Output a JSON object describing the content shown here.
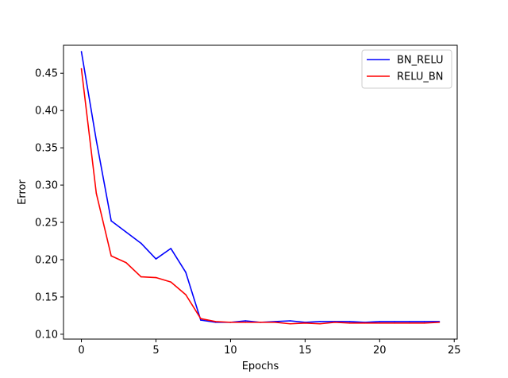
{
  "chart_data": {
    "type": "line",
    "title": "",
    "xlabel": "Epochs",
    "ylabel": "Error",
    "xlim": [
      -1.2,
      25.2
    ],
    "ylim": [
      0.0935,
      0.4875
    ],
    "xticks": [
      0,
      5,
      10,
      15,
      20,
      25
    ],
    "yticks": [
      0.1,
      0.15,
      0.2,
      0.25,
      0.3,
      0.35,
      0.4,
      0.45
    ],
    "grid": false,
    "legend_position": "top-right",
    "x": [
      0,
      1,
      2,
      3,
      4,
      5,
      6,
      7,
      8,
      9,
      10,
      11,
      12,
      13,
      14,
      15,
      16,
      17,
      18,
      19,
      20,
      21,
      22,
      23,
      24
    ],
    "series": [
      {
        "name": "BN_RELU",
        "color": "#0000ff",
        "values": [
          0.479,
          0.36,
          0.252,
          0.237,
          0.222,
          0.201,
          0.215,
          0.183,
          0.119,
          0.116,
          0.116,
          0.118,
          0.116,
          0.117,
          0.118,
          0.116,
          0.117,
          0.117,
          0.117,
          0.116,
          0.117,
          0.117,
          0.117,
          0.117,
          0.117
        ]
      },
      {
        "name": "RELU_BN",
        "color": "#ff0000",
        "values": [
          0.456,
          0.289,
          0.205,
          0.196,
          0.177,
          0.176,
          0.17,
          0.153,
          0.121,
          0.117,
          0.116,
          0.116,
          0.116,
          0.116,
          0.114,
          0.115,
          0.114,
          0.116,
          0.115,
          0.115,
          0.115,
          0.115,
          0.115,
          0.115,
          0.116
        ]
      }
    ]
  }
}
